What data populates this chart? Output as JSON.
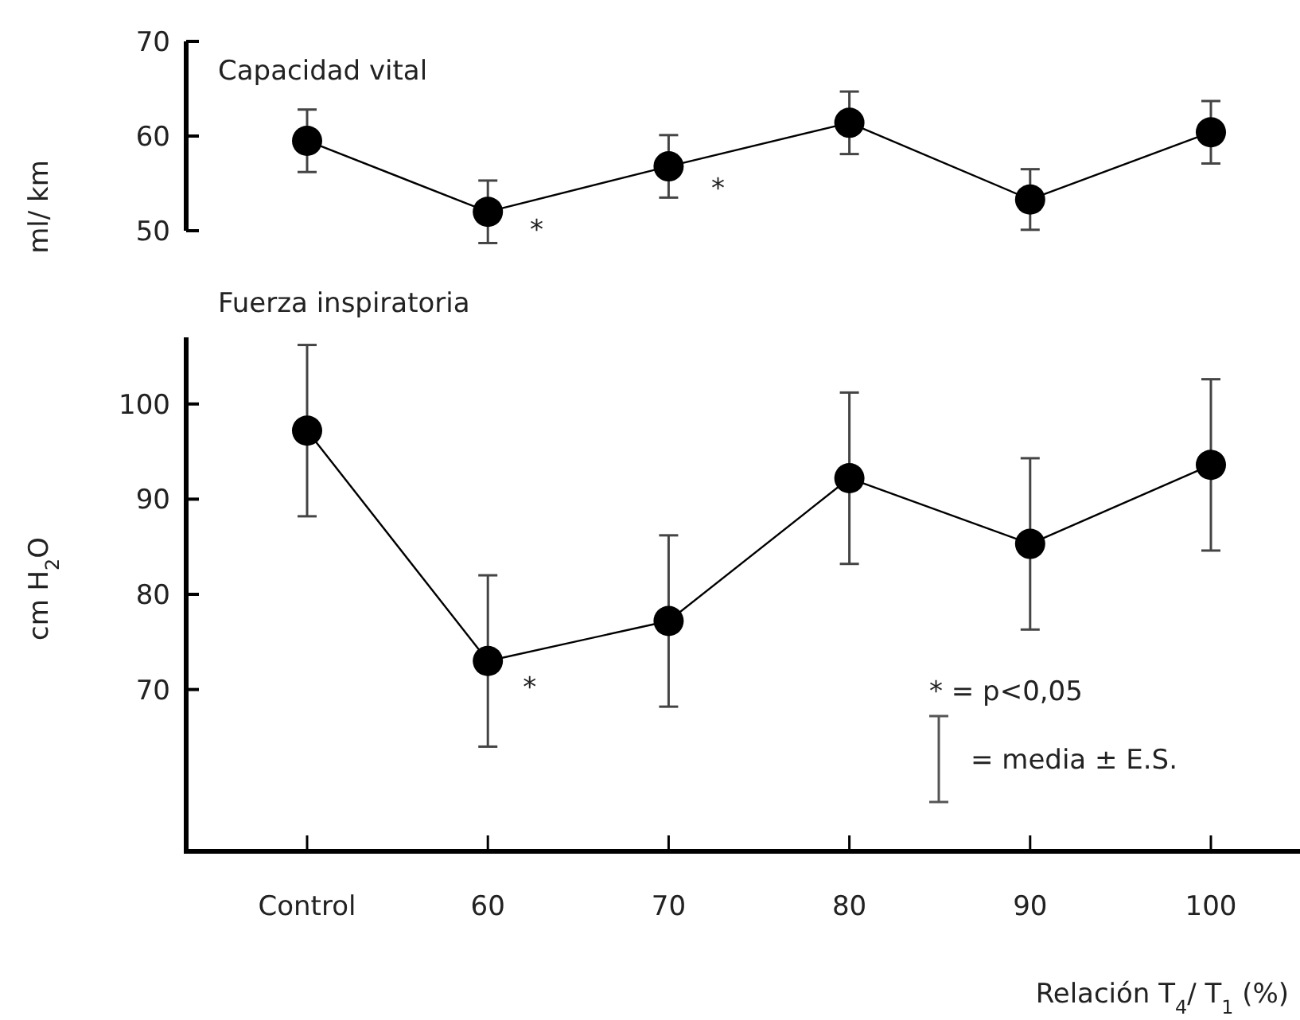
{
  "chart_data": [
    {
      "type": "line",
      "title": "Capacidad vital",
      "ylabel": "ml/ km",
      "categories": [
        null,
        null,
        null,
        null,
        null,
        null
      ],
      "ylim": [
        50,
        70
      ],
      "yticks": [
        50,
        60,
        70
      ],
      "tick_labels": "y",
      "marker": "circle",
      "line_style": "solid",
      "grid": false,
      "series": [
        {
          "color": "#000000",
          "values": [
            59.5,
            52,
            56.8,
            61.4,
            53.3,
            60.4
          ],
          "errors": [
            3.3,
            3.3,
            3.3,
            3.3,
            3.2,
            3.3
          ]
        }
      ],
      "annotations": [
        "*",
        "*"
      ]
    },
    {
      "type": "line",
      "title": "Fuerza inspiratoria",
      "ylabel": "cm H$_{2}$O",
      "xlabel": "Relación T$_{4}$/ T$_{1}$ (%)",
      "categories": [
        "Control",
        "60",
        "70",
        "80",
        "90",
        "100"
      ],
      "ylim": [
        53,
        107
      ],
      "yticks": [
        70,
        80,
        90,
        100
      ],
      "marker": "circle",
      "line_style": "solid",
      "grid": false,
      "series": [
        {
          "color": "#000000",
          "values": [
            97.2,
            73,
            77.2,
            92.2,
            85.3,
            93.6
          ],
          "errors": [
            9,
            9,
            9,
            9,
            9,
            9
          ]
        }
      ],
      "annotations": [
        {
          "text": "*",
          "x": "60",
          "y": 73
        },
        "* = p<0,05",
        "= media ± E.S."
      ]
    }
  ]
}
